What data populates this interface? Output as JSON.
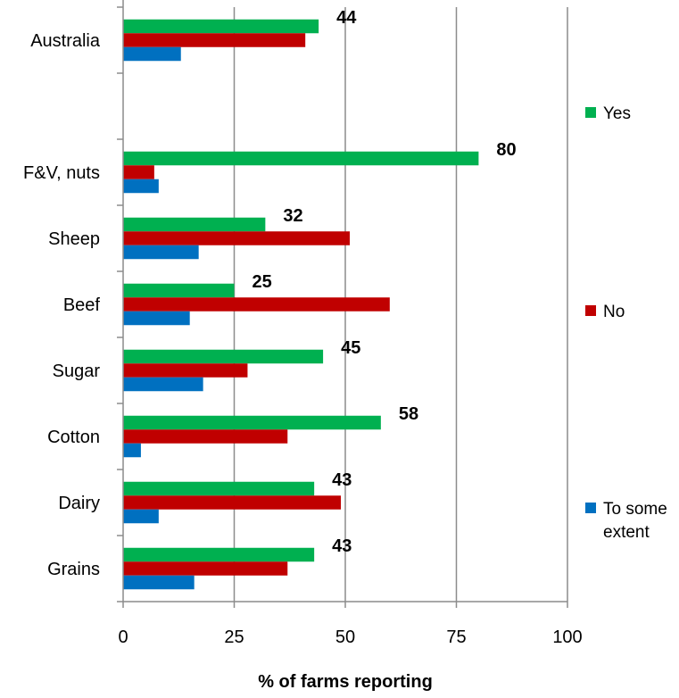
{
  "chart_data": {
    "type": "bar",
    "orientation": "horizontal",
    "categories": [
      "Australia",
      "",
      "F&V, nuts",
      "Sheep",
      "Beef",
      "Sugar",
      "Cotton",
      "Dairy",
      "Grains"
    ],
    "series": [
      {
        "name": "Yes",
        "color": "#00b050",
        "values": [
          44,
          null,
          80,
          32,
          25,
          45,
          58,
          43,
          43
        ]
      },
      {
        "name": "No",
        "color": "#c00000",
        "values": [
          41,
          null,
          7,
          51,
          60,
          28,
          37,
          49,
          37
        ]
      },
      {
        "name": "To some extent",
        "color": "#0070c0",
        "values": [
          13,
          null,
          8,
          17,
          15,
          18,
          4,
          8,
          16
        ]
      }
    ],
    "data_labels": [
      "44",
      "",
      "80",
      "32",
      "25",
      "45",
      "58",
      "43",
      "43"
    ],
    "xlim": [
      0,
      100
    ],
    "xticks": [
      "0",
      "25",
      "50",
      "75",
      "100"
    ],
    "xlabel": "% of farms reporting",
    "ylabel": "",
    "title": "",
    "grid": "vertical major gridlines",
    "legend": "right"
  }
}
